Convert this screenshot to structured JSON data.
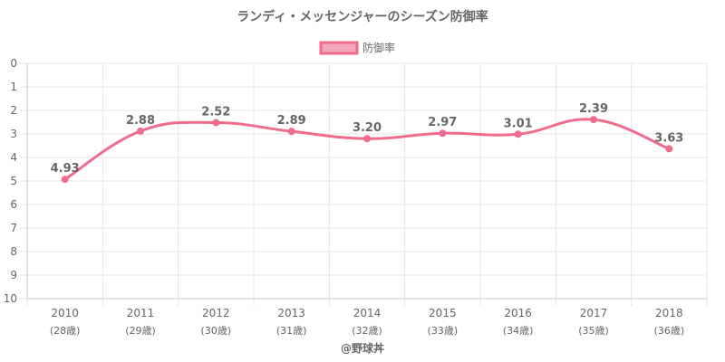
{
  "colors": {
    "line": "#f06b8c",
    "point": "#f06b8c",
    "legend_fill": "#f5a8bc",
    "grid": "#e5e5e5",
    "axis": "#c8c8c8",
    "text": "#666666"
  },
  "credit": "@野球丼",
  "chart_data": {
    "type": "line",
    "title": "ランディ・メッセンジャーのシーズン防御率",
    "legend": {
      "labels": [
        "防御率"
      ],
      "position": "top"
    },
    "categories": [
      "2010",
      "2011",
      "2012",
      "2013",
      "2014",
      "2015",
      "2016",
      "2017",
      "2018"
    ],
    "sub_labels": [
      "(28歳)",
      "(29歳)",
      "(30歳)",
      "(31歳)",
      "(32歳)",
      "(33歳)",
      "(34歳)",
      "(35歳)",
      "(36歳)"
    ],
    "series": [
      {
        "name": "防御率",
        "values": [
          4.93,
          2.88,
          2.52,
          2.89,
          3.2,
          2.97,
          3.01,
          2.39,
          3.63
        ]
      }
    ],
    "data_labels": [
      "4.93",
      "2.88",
      "2.52",
      "2.89",
      "3.20",
      "2.97",
      "3.01",
      "2.39",
      "3.63"
    ],
    "y_ticks": [
      "0",
      "1",
      "2",
      "3",
      "4",
      "5",
      "6",
      "7",
      "8",
      "9",
      "10"
    ],
    "ylim": [
      0,
      10
    ],
    "y_reversed": true,
    "grid": true
  }
}
